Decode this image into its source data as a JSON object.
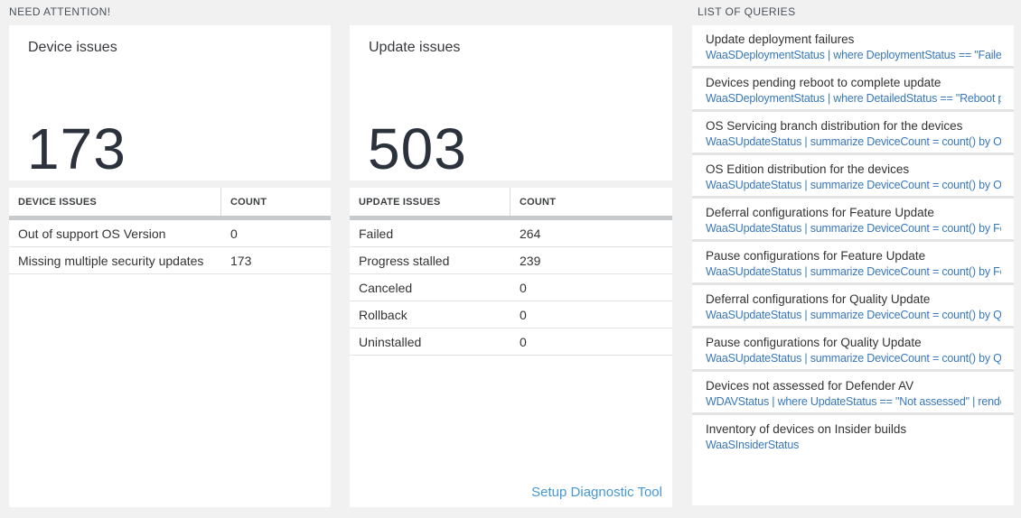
{
  "colors": {
    "page_background": "#f1f1f1",
    "big_number_text": "#2b323c",
    "query_link_blue": "#3878ba",
    "setup_link_blue": "#4698d4",
    "header_band_gray": "#c7cacc"
  },
  "need_attention": {
    "header": "NEED ATTENTION!",
    "cards": [
      {
        "title": "Device issues",
        "big_number": "173",
        "table": {
          "columns": [
            "DEVICE ISSUES",
            "COUNT"
          ],
          "rows": [
            {
              "label": "Out of support OS Version",
              "count": "0"
            },
            {
              "label": "Missing multiple security updates",
              "count": "173"
            }
          ]
        }
      },
      {
        "title": "Update issues",
        "big_number": "503",
        "table": {
          "columns": [
            "UPDATE ISSUES",
            "COUNT"
          ],
          "rows": [
            {
              "label": "Failed",
              "count": "264"
            },
            {
              "label": "Progress stalled",
              "count": "239"
            },
            {
              "label": "Canceled",
              "count": "0"
            },
            {
              "label": "Rollback",
              "count": "0"
            },
            {
              "label": "Uninstalled",
              "count": "0"
            }
          ]
        },
        "footer_link": "Setup Diagnostic Tool"
      }
    ]
  },
  "queries": {
    "header": "LIST OF QUERIES",
    "items": [
      {
        "title": "Update deployment failures",
        "query": "WaaSDeploymentStatus | where DeploymentStatus == \"Failed\" |..."
      },
      {
        "title": "Devices pending reboot to complete update",
        "query": "WaaSDeploymentStatus | where DetailedStatus == \"Reboot pend..."
      },
      {
        "title": "OS Servicing branch distribution for the devices",
        "query": "WaaSUpdateStatus | summarize DeviceCount = count() by OSSer..."
      },
      {
        "title": "OS Edition distribution for the devices",
        "query": "WaaSUpdateStatus | summarize DeviceCount = count() by OSEdit..."
      },
      {
        "title": "Deferral configurations for Feature Update",
        "query": "WaaSUpdateStatus | summarize DeviceCount = count() by Featur..."
      },
      {
        "title": "Pause configurations for Feature Update",
        "query": "WaaSUpdateStatus | summarize DeviceCount = count() by Featur..."
      },
      {
        "title": "Deferral configurations for Quality Update",
        "query": "WaaSUpdateStatus | summarize DeviceCount = count() by Qualit..."
      },
      {
        "title": "Pause configurations for Quality Update",
        "query": "WaaSUpdateStatus | summarize DeviceCount = count() by Qualit..."
      },
      {
        "title": "Devices not assessed for Defender AV",
        "query": "WDAVStatus | where UpdateStatus == \"Not assessed\" | render ta..."
      },
      {
        "title": "Inventory of devices on Insider builds",
        "query": "WaaSInsiderStatus"
      }
    ]
  }
}
